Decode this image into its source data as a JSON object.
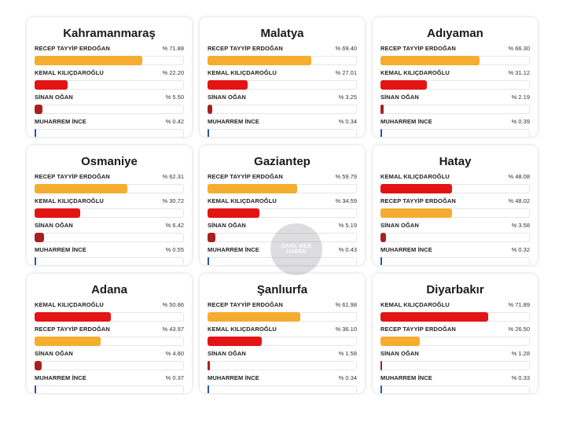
{
  "colors": {
    "recep_tayyip_erdogan": "#f4ad2f",
    "kemal_kilicdaroglu": "#e31414",
    "sinan_ogan": "#a82020",
    "muharrem_ince": "#2458a6"
  },
  "chart_data": [
    {
      "type": "bar",
      "title": "Kahramanmaraş",
      "rows": [
        {
          "key": "recep_tayyip_erdogan",
          "label": "RECEP TAYYİP ERDOĞAN",
          "pct_label": "% 71.88",
          "value": 71.88
        },
        {
          "key": "kemal_kilicdaroglu",
          "label": "KEMAL KILIÇDAROĞLU",
          "pct_label": "% 22.20",
          "value": 22.2
        },
        {
          "key": "sinan_ogan",
          "label": "SİNAN OĞAN",
          "pct_label": "% 5.50",
          "value": 5.5
        },
        {
          "key": "muharrem_ince",
          "label": "MUHARREM İNCE",
          "pct_label": "% 0.42",
          "value": 0.42
        }
      ]
    },
    {
      "type": "bar",
      "title": "Malatya",
      "rows": [
        {
          "key": "recep_tayyip_erdogan",
          "label": "RECEP TAYYİP ERDOĞAN",
          "pct_label": "% 69.40",
          "value": 69.4
        },
        {
          "key": "kemal_kilicdaroglu",
          "label": "KEMAL KILIÇDAROĞLU",
          "pct_label": "% 27.01",
          "value": 27.01
        },
        {
          "key": "sinan_ogan",
          "label": "SİNAN OĞAN",
          "pct_label": "% 3.25",
          "value": 3.25
        },
        {
          "key": "muharrem_ince",
          "label": "MUHARREM İNCE",
          "pct_label": "% 0.34",
          "value": 0.34
        }
      ]
    },
    {
      "type": "bar",
      "title": "Adıyaman",
      "rows": [
        {
          "key": "recep_tayyip_erdogan",
          "label": "RECEP TAYYİP ERDOĞAN",
          "pct_label": "% 66.30",
          "value": 66.3
        },
        {
          "key": "kemal_kilicdaroglu",
          "label": "KEMAL KILIÇDAROĞLU",
          "pct_label": "% 31.12",
          "value": 31.12
        },
        {
          "key": "sinan_ogan",
          "label": "SİNAN OĞAN",
          "pct_label": "% 2.19",
          "value": 2.19
        },
        {
          "key": "muharrem_ince",
          "label": "MUHARREM İNCE",
          "pct_label": "% 0.39",
          "value": 0.39
        }
      ]
    },
    {
      "type": "bar",
      "title": "Osmaniye",
      "rows": [
        {
          "key": "recep_tayyip_erdogan",
          "label": "RECEP TAYYİP ERDOĞAN",
          "pct_label": "% 62.31",
          "value": 62.31
        },
        {
          "key": "kemal_kilicdaroglu",
          "label": "KEMAL KILIÇDAROĞLU",
          "pct_label": "% 30.72",
          "value": 30.72
        },
        {
          "key": "sinan_ogan",
          "label": "SİNAN OĞAN",
          "pct_label": "% 6.42",
          "value": 6.42
        },
        {
          "key": "muharrem_ince",
          "label": "MUHARREM İNCE",
          "pct_label": "% 0.55",
          "value": 0.55
        }
      ]
    },
    {
      "type": "bar",
      "title": "Gaziantep",
      "rows": [
        {
          "key": "recep_tayyip_erdogan",
          "label": "RECEP TAYYİP ERDOĞAN",
          "pct_label": "% 59.79",
          "value": 59.79
        },
        {
          "key": "kemal_kilicdaroglu",
          "label": "KEMAL KILIÇDAROĞLU",
          "pct_label": "% 34.59",
          "value": 34.59
        },
        {
          "key": "sinan_ogan",
          "label": "SİNAN OĞAN",
          "pct_label": "% 5.19",
          "value": 5.19
        },
        {
          "key": "muharrem_ince",
          "label": "MUHARREM İNCE",
          "pct_label": "% 0.43",
          "value": 0.43
        }
      ]
    },
    {
      "type": "bar",
      "title": "Hatay",
      "rows": [
        {
          "key": "kemal_kilicdaroglu",
          "label": "KEMAL KILIÇDAROĞLU",
          "pct_label": "% 48.08",
          "value": 48.08
        },
        {
          "key": "recep_tayyip_erdogan",
          "label": "RECEP TAYYİP ERDOĞAN",
          "pct_label": "% 48.02",
          "value": 48.02
        },
        {
          "key": "sinan_ogan",
          "label": "SİNAN OĞAN",
          "pct_label": "% 3.58",
          "value": 3.58
        },
        {
          "key": "muharrem_ince",
          "label": "MUHARREM İNCE",
          "pct_label": "% 0.32",
          "value": 0.32
        }
      ]
    },
    {
      "type": "bar",
      "title": "Adana",
      "rows": [
        {
          "key": "kemal_kilicdaroglu",
          "label": "KEMAL KILIÇDAROĞLU",
          "pct_label": "% 50.86",
          "value": 50.86
        },
        {
          "key": "recep_tayyip_erdogan",
          "label": "RECEP TAYYİP ERDOĞAN",
          "pct_label": "% 43.97",
          "value": 43.97
        },
        {
          "key": "sinan_ogan",
          "label": "SİNAN OĞAN",
          "pct_label": "% 4.80",
          "value": 4.8
        },
        {
          "key": "muharrem_ince",
          "label": "MUHARREM İNCE",
          "pct_label": "% 0.37",
          "value": 0.37
        }
      ]
    },
    {
      "type": "bar",
      "title": "Şanlıurfa",
      "rows": [
        {
          "key": "recep_tayyip_erdogan",
          "label": "RECEP TAYYİP ERDOĞAN",
          "pct_label": "% 61.98",
          "value": 61.98
        },
        {
          "key": "kemal_kilicdaroglu",
          "label": "KEMAL KILIÇDAROĞLU",
          "pct_label": "% 36.10",
          "value": 36.1
        },
        {
          "key": "sinan_ogan",
          "label": "SİNAN OĞAN",
          "pct_label": "% 1.58",
          "value": 1.58
        },
        {
          "key": "muharrem_ince",
          "label": "MUHARREM İNCE",
          "pct_label": "% 0.34",
          "value": 0.34
        }
      ]
    },
    {
      "type": "bar",
      "title": "Diyarbakır",
      "rows": [
        {
          "key": "kemal_kilicdaroglu",
          "label": "KEMAL KILIÇDAROĞLU",
          "pct_label": "% 71.89",
          "value": 71.89
        },
        {
          "key": "recep_tayyip_erdogan",
          "label": "RECEP TAYYİP ERDOĞAN",
          "pct_label": "% 26.50",
          "value": 26.5
        },
        {
          "key": "sinan_ogan",
          "label": "SİNAN OĞAN",
          "pct_label": "% 1.28",
          "value": 1.28
        },
        {
          "key": "muharrem_ince",
          "label": "MUHARREM İNCE",
          "pct_label": "% 0.33",
          "value": 0.33
        }
      ]
    }
  ],
  "watermark": {
    "line1": "DARK WEB",
    "line2": "HABER"
  }
}
